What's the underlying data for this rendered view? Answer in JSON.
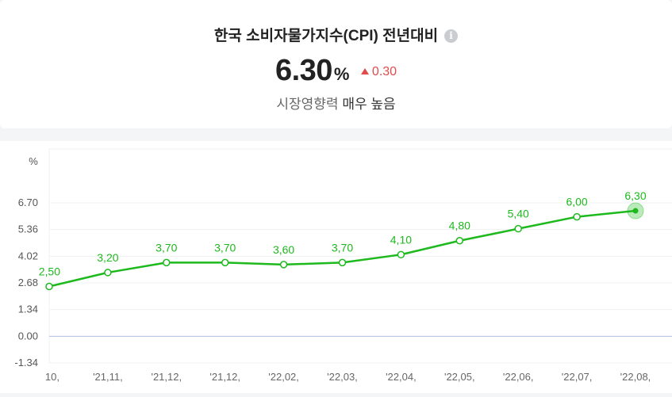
{
  "header": {
    "title": "한국 소비자물가지수(CPI) 전년대비",
    "info_icon": "info-icon",
    "value": "6.30",
    "unit": "%",
    "change": "0.30",
    "change_direction": "up",
    "change_color": "#e04b4b",
    "impact_label": "시장영향력",
    "impact_value": "매우 높음"
  },
  "chart_data": {
    "type": "line",
    "ylabel": "%",
    "ylim": [
      -1.34,
      6.7
    ],
    "yticks": [
      "6.70",
      "5.36",
      "4.02",
      "2.68",
      "1.34",
      "0.00",
      "-1.34"
    ],
    "x": [
      "10,",
      "'21,11,",
      "'21,12,",
      "'21,12,",
      "'22,02,",
      "'22,03,",
      "'22,04,",
      "'22,05,",
      "'22,06,",
      "'22,07,",
      "'22,08,"
    ],
    "values": [
      2.5,
      3.2,
      3.7,
      3.7,
      3.6,
      3.7,
      4.1,
      4.8,
      5.4,
      6.0,
      6.3
    ],
    "point_labels": [
      "2,50",
      "3,20",
      "3,70",
      "3,70",
      "3,60",
      "3,70",
      "4,10",
      "4,80",
      "5,40",
      "6,00",
      "6,30"
    ],
    "line_color": "#1db91d",
    "zero_line_color": "#aebfe3",
    "highlight_last": true,
    "grid": true
  }
}
